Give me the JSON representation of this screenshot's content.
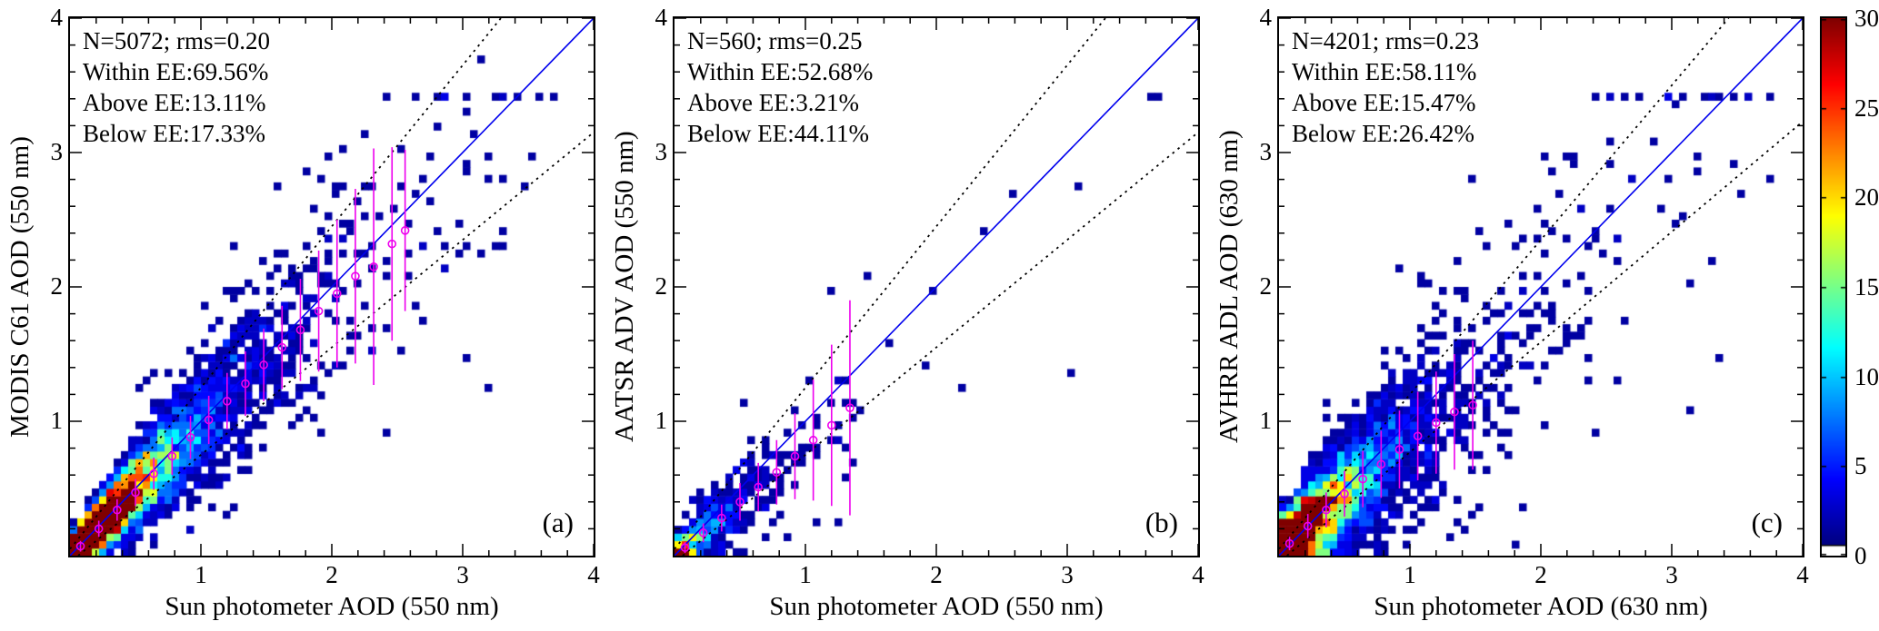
{
  "colorbar": {
    "min": 0,
    "max": 30,
    "ticks": [
      0,
      5,
      10,
      15,
      20,
      25,
      30
    ],
    "zero_color": "#ffffff",
    "colormap": "jet"
  },
  "chart_data": [
    {
      "type": "heatmap",
      "panel_letter": "(a)",
      "xlabel": "Sun photometer AOD (550 nm)",
      "ylabel": "MODIS C61 AOD (550 nm)",
      "xlim": [
        0,
        4
      ],
      "ylim": [
        0,
        4
      ],
      "xticks": [
        1,
        2,
        3,
        4
      ],
      "yticks": [
        1,
        2,
        3,
        4
      ],
      "minor_tick_step": 0.2,
      "stats": [
        "N=5072; rms=0.20",
        "Within EE:69.56%",
        "Above EE:13.11%",
        "Below EE:17.33%"
      ],
      "n_points": 5072,
      "rms": 0.2,
      "within_ee_pct": 69.56,
      "above_ee_pct": 13.11,
      "below_ee_pct": 17.33,
      "identity_line": {
        "color": "#0000ee",
        "from": [
          0,
          0
        ],
        "to": [
          4,
          4
        ]
      },
      "ee_envelope": {
        "upper": {
          "slope": 1.2,
          "intercept": 0.05
        },
        "lower": {
          "slope": 0.8,
          "intercept": -0.05
        },
        "style": "dotted",
        "color": "#000000"
      },
      "binned_means": {
        "color": "#ee00ee",
        "points": [
          [
            0.08,
            0.07,
            0.04
          ],
          [
            0.22,
            0.2,
            0.06
          ],
          [
            0.36,
            0.34,
            0.08
          ],
          [
            0.5,
            0.47,
            0.1
          ],
          [
            0.64,
            0.61,
            0.12
          ],
          [
            0.78,
            0.74,
            0.14
          ],
          [
            0.92,
            0.88,
            0.16
          ],
          [
            1.06,
            1.01,
            0.18
          ],
          [
            1.2,
            1.15,
            0.21
          ],
          [
            1.34,
            1.28,
            0.24
          ],
          [
            1.48,
            1.42,
            0.27
          ],
          [
            1.62,
            1.55,
            0.31
          ],
          [
            1.76,
            1.68,
            0.38
          ],
          [
            1.9,
            1.82,
            0.45
          ],
          [
            2.04,
            1.95,
            0.55
          ],
          [
            2.18,
            2.08,
            0.65
          ],
          [
            2.32,
            2.15,
            0.88
          ],
          [
            2.46,
            2.32,
            0.72
          ],
          [
            2.56,
            2.42,
            0.6
          ]
        ]
      },
      "density_sim": {
        "seed": 42,
        "n": 5072,
        "x_scale": 0.45,
        "y_slope": 0.96,
        "y_intercept": 0.015,
        "noise_base": 0.05,
        "noise_slope": 0.2,
        "outlier_frac": 0.015
      }
    },
    {
      "type": "heatmap",
      "panel_letter": "(b)",
      "xlabel": "Sun photometer AOD (550 nm)",
      "ylabel": "AATSR ADV AOD (550 nm)",
      "xlim": [
        0,
        4
      ],
      "ylim": [
        0,
        4
      ],
      "xticks": [
        1,
        2,
        3,
        4
      ],
      "yticks": [
        1,
        2,
        3,
        4
      ],
      "minor_tick_step": 0.2,
      "stats": [
        "N=560; rms=0.25",
        "Within EE:52.68%",
        "Above EE:3.21%",
        "Below EE:44.11%"
      ],
      "n_points": 560,
      "rms": 0.25,
      "within_ee_pct": 52.68,
      "above_ee_pct": 3.21,
      "below_ee_pct": 44.11,
      "identity_line": {
        "color": "#0000ee",
        "from": [
          0,
          0
        ],
        "to": [
          4,
          4
        ]
      },
      "ee_envelope": {
        "upper": {
          "slope": 1.2,
          "intercept": 0.05
        },
        "lower": {
          "slope": 0.8,
          "intercept": -0.05
        },
        "style": "dotted",
        "color": "#000000"
      },
      "binned_means": {
        "color": "#ee00ee",
        "points": [
          [
            0.08,
            0.06,
            0.04
          ],
          [
            0.22,
            0.17,
            0.07
          ],
          [
            0.36,
            0.28,
            0.1
          ],
          [
            0.5,
            0.4,
            0.14
          ],
          [
            0.64,
            0.51,
            0.18
          ],
          [
            0.78,
            0.62,
            0.24
          ],
          [
            0.92,
            0.74,
            0.32
          ],
          [
            1.06,
            0.86,
            0.45
          ],
          [
            1.2,
            0.97,
            0.6
          ],
          [
            1.34,
            1.1,
            0.8
          ]
        ]
      },
      "density_sim": {
        "seed": 7,
        "n": 560,
        "x_scale": 0.32,
        "y_slope": 0.78,
        "y_intercept": 0.01,
        "noise_base": 0.06,
        "noise_slope": 0.22,
        "outlier_frac": 0.03
      }
    },
    {
      "type": "heatmap",
      "panel_letter": "(c)",
      "xlabel": "Sun photometer AOD (630 nm)",
      "ylabel": "AVHRR ADL AOD (630 nm)",
      "xlim": [
        0,
        4
      ],
      "ylim": [
        0,
        4
      ],
      "xticks": [
        1,
        2,
        3,
        4
      ],
      "yticks": [
        1,
        2,
        3,
        4
      ],
      "minor_tick_step": 0.2,
      "stats": [
        "N=4201; rms=0.23",
        "Within EE:58.11%",
        "Above EE:15.47%",
        "Below EE:26.42%"
      ],
      "n_points": 4201,
      "rms": 0.23,
      "within_ee_pct": 58.11,
      "above_ee_pct": 15.47,
      "below_ee_pct": 26.42,
      "identity_line": {
        "color": "#0000ee",
        "from": [
          0,
          0
        ],
        "to": [
          4,
          4
        ]
      },
      "ee_envelope": {
        "upper": {
          "slope": 1.15,
          "intercept": 0.05
        },
        "lower": {
          "slope": 0.82,
          "intercept": -0.05
        },
        "style": "dotted",
        "color": "#000000"
      },
      "binned_means": {
        "color": "#ee00ee",
        "points": [
          [
            0.08,
            0.09,
            0.05
          ],
          [
            0.22,
            0.22,
            0.09
          ],
          [
            0.36,
            0.34,
            0.13
          ],
          [
            0.5,
            0.46,
            0.17
          ],
          [
            0.64,
            0.57,
            0.21
          ],
          [
            0.78,
            0.68,
            0.25
          ],
          [
            0.92,
            0.79,
            0.29
          ],
          [
            1.06,
            0.89,
            0.33
          ],
          [
            1.2,
            0.99,
            0.38
          ],
          [
            1.34,
            1.07,
            0.43
          ],
          [
            1.48,
            1.12,
            0.48
          ]
        ]
      },
      "density_sim": {
        "seed": 99,
        "n": 4201,
        "x_scale": 0.38,
        "y_slope": 0.82,
        "y_intercept": 0.05,
        "noise_base": 0.1,
        "noise_slope": 0.2,
        "outlier_frac": 0.02
      }
    }
  ]
}
